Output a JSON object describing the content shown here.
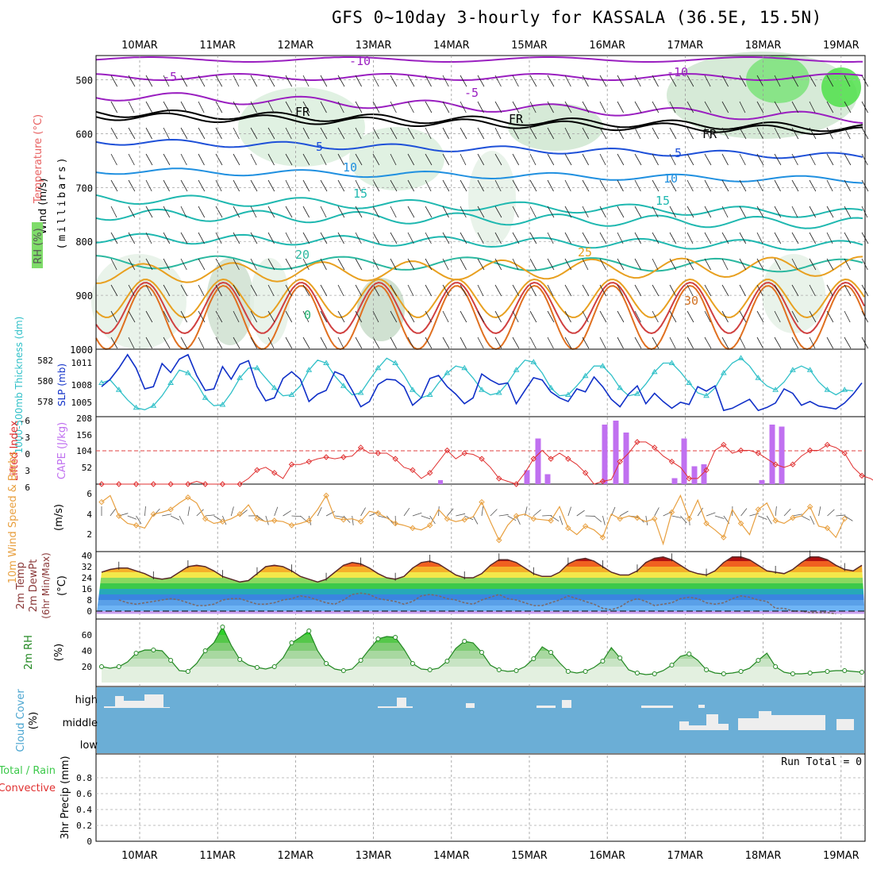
{
  "title": "GFS 0~10day 3-hourly for KASSALA (36.5E, 15.5N)",
  "dates": [
    "10MAR",
    "11MAR",
    "12MAR",
    "13MAR",
    "14MAR",
    "15MAR",
    "16MAR",
    "17MAR",
    "18MAR",
    "19MAR"
  ],
  "colors": {
    "rh_green": "#7fdc6a",
    "temp_purple": "#9a1fc0",
    "temp_blue": "#1e50d8",
    "temp_cyan": "#1fb8b0",
    "temp_orange": "#e8a020",
    "slp_blue": "#1030c8",
    "thickness_cyan": "#30c0c8",
    "cape_purple": "#c070f0",
    "li_red": "#e03030",
    "wind_orange": "#e8a040",
    "rh_line": "#228822",
    "cloud_blue": "#6baed6"
  },
  "panels": {
    "upper": {
      "ylabel_parts": [
        "RH (%)",
        "Temperature (°C)",
        "Wind (m/s)"
      ],
      "ylabel_unit": "(millibars)",
      "yticks": [
        500,
        600,
        700,
        800,
        900,
        1000
      ],
      "contour_labels": [
        "-10",
        "-5",
        "-5",
        "-10",
        "FR",
        "FR",
        "FR",
        "-5",
        "5",
        "5",
        "10",
        "10",
        "15",
        "15",
        "20",
        "25",
        "30",
        "0"
      ]
    },
    "slp": {
      "ylabel_left": "1000-500mb Thickness (dm)",
      "ylabel_right": "SLP (mb)",
      "left_ticks": [
        "582",
        "580",
        "578"
      ],
      "right_ticks": [
        "1011",
        "1008",
        "1005"
      ],
      "bottom_left": "208"
    },
    "cape": {
      "ylabel_left": "Lifted Index",
      "ylabel_right": "CAPE (J/kg)",
      "left_ticks": [
        "-6",
        "-3",
        "0",
        "3",
        "6"
      ],
      "right_ticks": [
        "156",
        "104",
        "52"
      ]
    },
    "wind10": {
      "ylabel": "10m Wind Speed & Barbs",
      "unit": "(m/s)",
      "ticks": [
        "6",
        "4",
        "2"
      ]
    },
    "temp2m": {
      "ylabel": "2m Temp 2m DewPt (6hr Min/Max)",
      "unit": "(°C)",
      "ticks": [
        "40",
        "32",
        "24",
        "16",
        "8",
        "0"
      ]
    },
    "rh2m": {
      "ylabel": "2m RH",
      "unit": "(%)",
      "ticks": [
        "60",
        "40",
        "20"
      ]
    },
    "cloud": {
      "ylabel": "Cloud Cover",
      "unit": "(%)",
      "levels": [
        "high",
        "middle",
        "low"
      ]
    },
    "precip": {
      "ylabel_total": "Total / Rain",
      "ylabel_conv": "Convective",
      "ylabel": "3hr Precip (mm)",
      "ticks": [
        "0.8",
        "0.6",
        "0.4",
        "0.2",
        "0"
      ],
      "run_total": "Run Total = 0"
    }
  },
  "chart_data": [
    {
      "type": "line",
      "title": "SLP (mb)",
      "series": [
        {
          "name": "SLP (mb)",
          "values": [
            1007.5,
            1008.5,
            1010,
            1011.8,
            1010,
            1007.2,
            1007.5,
            1010.6,
            1009.4,
            1011.2,
            1011.8,
            1009,
            1007,
            1007.2,
            1010.2,
            1008.5,
            1010.5,
            1011,
            1007.5,
            1005.6,
            1006,
            1008.6,
            1009.5,
            1008.5,
            1005.5,
            1006.5,
            1007,
            1009.5,
            1009,
            1007,
            1004.8,
            1005.5,
            1007.8,
            1008.5,
            1008.4,
            1007.5,
            1005,
            1006,
            1008.6,
            1009,
            1007.5,
            1006.5,
            1005.2,
            1006,
            1009.2,
            1008.4,
            1007.8,
            1008,
            1005.2,
            1007,
            1008.7,
            1008.4,
            1006.8,
            1006,
            1005.5,
            1007.2,
            1006.8,
            1008.8,
            1007.5,
            1005.8,
            1004.8,
            1006.5,
            1007.6,
            1005.2,
            1006.6,
            1005.5,
            1004.6,
            1005.4,
            1005.1,
            1007.5,
            1006.9,
            1007.6,
            1004.3,
            1004.6,
            1005.2,
            1005.8,
            1004.3,
            1004.7,
            1005.3,
            1007.2,
            1006.6,
            1005,
            1005.5,
            1004.9,
            1004.7,
            1004.5,
            1005.3,
            1006.5,
            1008
          ]
        }
      ]
    },
    {
      "type": "line",
      "title": "1000-500mb Thickness (dm)",
      "series": [
        {
          "name": "Thickness (dm)",
          "values": [
            579.5,
            579.8,
            578.8,
            577.8,
            577,
            576.8,
            577.2,
            578.2,
            579.5,
            580.8,
            580.5,
            579.5,
            578,
            577.2,
            577.3,
            578.5,
            580,
            581,
            581,
            580,
            579,
            578.2,
            578.3,
            579.2,
            580.8,
            581.8,
            581.5,
            580.2,
            579.2,
            578.3,
            578.5,
            579.8,
            581,
            582,
            581.5,
            580.3,
            578.8,
            578,
            578.3,
            579.5,
            580.5,
            581.2,
            581,
            580,
            578.8,
            578.3,
            578.5,
            579.5,
            580.8,
            581.8,
            581.6,
            580.5,
            579,
            578.2,
            578.3,
            579.2,
            580.2,
            581.2,
            581.2,
            580.3,
            579,
            578.2,
            578.4,
            579.4,
            580.6,
            581.5,
            581.5,
            580.6,
            579.5,
            578.5,
            578.2,
            579,
            580.5,
            581.5,
            582,
            581.2,
            580,
            579.2,
            578.8,
            579.6,
            580.8,
            581.2,
            580.8,
            579.6,
            578.8,
            578.3,
            578.8,
            578.7
          ]
        }
      ]
    },
    {
      "type": "bar",
      "title": "CAPE (J/kg)",
      "categories": [
        "15MAR",
        "15MAR",
        "16MAR",
        "16MAR",
        "16MAR",
        "16MAR",
        "17MAR",
        "17MAR",
        "17MAR",
        "17MAR",
        "18MAR",
        "18MAR",
        "18MAR"
      ],
      "values": [
        35,
        115,
        25,
        150,
        160,
        130,
        15,
        115,
        45,
        50,
        10,
        150,
        145
      ]
    },
    {
      "type": "line",
      "title": "Lifted Index",
      "series": [
        {
          "name": "Lifted Index",
          "values": [
            6,
            6,
            6,
            6,
            6,
            6,
            6,
            6,
            6,
            6,
            6,
            5.5,
            6,
            6,
            6,
            6,
            6,
            5,
            3.5,
            3,
            4,
            5,
            2.5,
            2.5,
            2,
            1.5,
            1.2,
            1.5,
            1.2,
            1,
            -0.5,
            0.5,
            0.5,
            0.5,
            1.5,
            3,
            3.5,
            5,
            4,
            2,
            0,
            1.5,
            0.5,
            0.7,
            1.5,
            3,
            5,
            5.5,
            6,
            4,
            1.5,
            0,
            1.5,
            0.5,
            1.5,
            2.5,
            4,
            6,
            5.5,
            5.2,
            2,
            0.5,
            -1.5,
            -1.5,
            -0.5,
            1,
            2,
            3,
            5,
            5,
            3.5,
            0,
            -1,
            0.5,
            0,
            0,
            0.5,
            1.5,
            2.5,
            3,
            2.5,
            1,
            0,
            0,
            -1,
            -0.5,
            0.5,
            3,
            4.5,
            5,
            6,
            6
          ]
        }
      ]
    },
    {
      "type": "line",
      "title": "10m Wind Speed (m/s)",
      "series": [
        {
          "name": "10m Wind Speed",
          "values": [
            5.3,
            6,
            3.8,
            3,
            2.8,
            2.5,
            4,
            4.2,
            4.5,
            5.2,
            5.8,
            5.2,
            3.5,
            3,
            3.2,
            3.5,
            4,
            5,
            3.5,
            3.2,
            3.3,
            3.2,
            2.8,
            3,
            3.3,
            4.5,
            6,
            3.6,
            3.4,
            3.5,
            3.2,
            4.3,
            4.1,
            3.6,
            3,
            2.8,
            2.5,
            2.3,
            2.8,
            4.5,
            3.5,
            3.2,
            3.4,
            3.7,
            5.3,
            3.2,
            1.2,
            2.8,
            3.8,
            4,
            3.5,
            3.4,
            3.3,
            4.8,
            2.5,
            1.8,
            2.7,
            2.3,
            1.5,
            4,
            3.5,
            3.8,
            3.6,
            3.2,
            3.5,
            0.8,
            4.2,
            6,
            3.5,
            5.5,
            3,
            2.3,
            1.5,
            4.5,
            3,
            1.8,
            4.5,
            5.2,
            3.3,
            3,
            3.6,
            3.8,
            4.8,
            2.7,
            2.5,
            1.5,
            3.5
          ]
        }
      ]
    },
    {
      "type": "area",
      "title": "2m Temp (°C)",
      "series": [
        {
          "name": "2m Temp",
          "values": [
            28,
            30,
            31,
            31,
            29,
            27,
            24,
            23,
            24,
            28,
            32,
            33,
            32,
            29,
            25,
            23,
            21,
            22,
            27,
            32,
            33,
            32,
            29,
            25,
            23,
            21,
            23,
            28,
            33,
            35,
            34,
            31,
            27,
            24,
            23,
            25,
            31,
            35,
            36,
            34,
            30,
            26,
            24,
            24,
            27,
            33,
            37,
            37,
            35,
            31,
            27,
            25,
            25,
            28,
            34,
            37,
            38,
            36,
            32,
            28,
            26,
            26,
            29,
            35,
            38,
            39,
            37,
            33,
            29,
            27,
            26,
            29,
            35,
            39,
            39,
            37,
            33,
            29,
            28,
            27,
            30,
            35,
            39,
            39,
            37,
            33,
            30,
            29,
            33
          ]
        },
        {
          "name": "2m DewPt",
          "values": [
            8,
            6,
            5,
            6,
            7,
            8,
            9,
            8,
            6,
            4,
            4,
            5,
            8,
            9,
            9,
            7,
            5,
            5,
            6,
            8,
            9,
            11,
            10,
            8,
            6,
            5,
            8,
            12,
            13,
            12,
            9,
            8,
            7,
            5,
            7,
            11,
            12,
            11,
            9,
            8,
            6,
            5,
            8,
            10,
            12,
            9,
            8,
            6,
            4,
            4,
            6,
            8,
            11,
            9,
            7,
            5,
            2,
            1,
            3,
            7,
            9,
            7,
            4,
            5,
            6,
            9,
            10,
            9,
            6,
            5,
            6,
            9,
            11,
            10,
            8,
            7,
            2,
            2,
            0,
            0,
            -1,
            -1,
            -1,
            -2
          ]
        }
      ],
      "ylim": [
        -2,
        41
      ]
    },
    {
      "type": "area",
      "title": "2m RH (%)",
      "series": [
        {
          "name": "2m RH",
          "values": [
            20,
            18,
            20,
            26,
            37,
            41,
            41,
            40,
            28,
            15,
            14,
            24,
            40,
            50,
            70,
            47,
            29,
            22,
            19,
            17,
            20,
            31,
            50,
            57,
            65,
            40,
            24,
            17,
            15,
            17,
            28,
            42,
            55,
            58,
            57,
            42,
            24,
            17,
            16,
            18,
            27,
            43,
            52,
            50,
            38,
            22,
            16,
            14,
            15,
            20,
            30,
            45,
            38,
            25,
            14,
            12,
            14,
            19,
            27,
            44,
            31,
            16,
            12,
            10,
            11,
            15,
            22,
            33,
            36,
            28,
            16,
            12,
            11,
            12,
            14,
            18,
            28,
            37,
            20,
            13,
            11,
            11,
            12,
            13,
            14,
            15,
            15,
            14,
            13
          ]
        }
      ],
      "ylim": [
        0,
        75
      ]
    },
    {
      "type": "table",
      "title": "Cloud Cover (%)",
      "high_segments": [
        "10MAR",
        "10MAR",
        "13MAR",
        "15MAR",
        "16MAR",
        "17MAR",
        "18MAR"
      ],
      "middle_segments": [
        "17MAR",
        "18MAR",
        "19MAR"
      ]
    },
    {
      "type": "bar",
      "title": "3hr Precip (mm)",
      "ylim": [
        0,
        1
      ],
      "values": []
    }
  ]
}
